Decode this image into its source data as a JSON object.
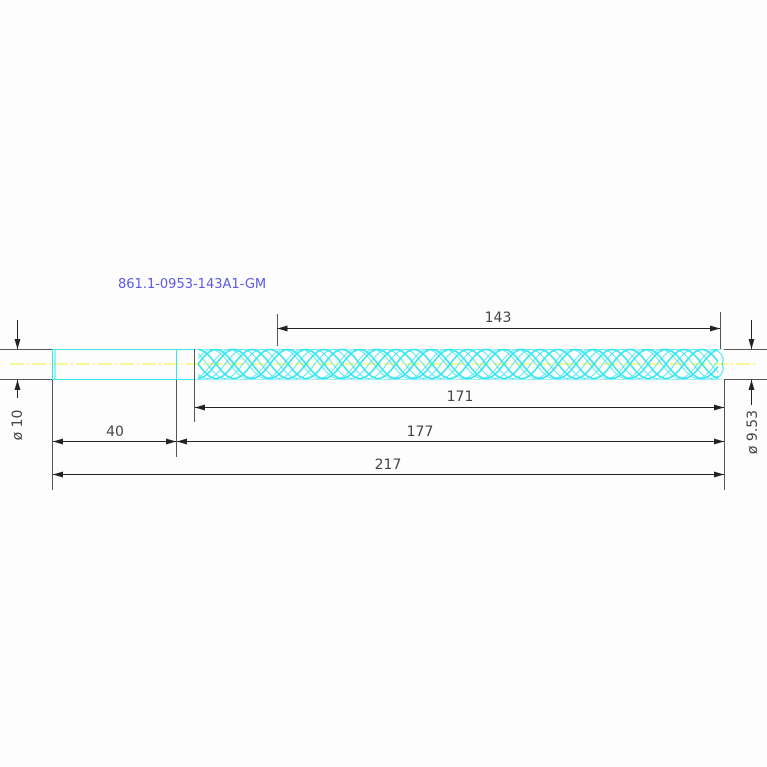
{
  "drawing": {
    "part_number": "861.1-0953-143A1-GM",
    "colors": {
      "outline": "#33e6f0",
      "centerline": "#f2f230",
      "dimension": "#333333",
      "title": "#5a5ae8",
      "background": "#fdfdfd"
    },
    "dimensions": {
      "flute_length": "143",
      "body_length": "171",
      "shank_to_tip": "177",
      "shank_length": "40",
      "overall_length": "217",
      "shank_diameter": "ø 10",
      "drill_diameter": "ø 9.53"
    }
  }
}
